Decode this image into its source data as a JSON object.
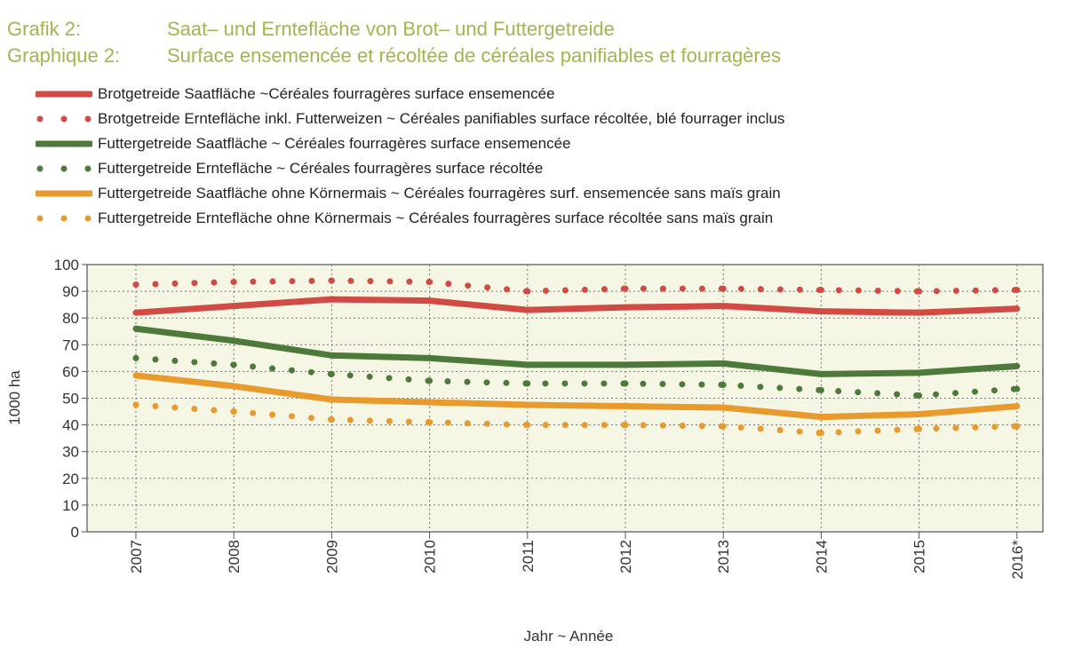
{
  "title": {
    "de_key": "Grafik 2:",
    "de_text": "Saat– und Erntefläche von Brot– und Futtergetreide",
    "fr_key": "Graphique 2:",
    "fr_text": "Surface ensemencée et récoltée de céréales panifiables et fourragères"
  },
  "colors": {
    "title": "#a2b54f",
    "red": "#d24a44",
    "green": "#4d7a3a",
    "orange": "#e99a2d",
    "plot_bg": "#f6f6e4"
  },
  "chart_data": {
    "type": "line",
    "ylabel": "1000 ha",
    "xlabel": "Jahr ~ Année",
    "ylim": [
      0,
      100
    ],
    "yticks": [
      0,
      10,
      20,
      30,
      40,
      50,
      60,
      70,
      80,
      90,
      100
    ],
    "categories": [
      "2007",
      "2008",
      "2009",
      "2010",
      "2011",
      "2012",
      "2013",
      "2014",
      "2015",
      "2016*"
    ],
    "grid": true,
    "series": [
      {
        "name": "Brotgetreide Saatfläche ~Céréales fourragères surface ensemencée",
        "style": "solid",
        "color": "#d24a44",
        "values": [
          82,
          84.5,
          87,
          86.5,
          83,
          84,
          84.5,
          82.5,
          82,
          83.5
        ]
      },
      {
        "name": "Brotgetreide Erntefläche inkl. Futterweizen ~ Céréales panifiables surface récoltée, blé fourrager inclus",
        "style": "dotted",
        "color": "#d24a44",
        "values": [
          92.5,
          93.5,
          94,
          93.5,
          90,
          91,
          91,
          90.5,
          90,
          90.5
        ]
      },
      {
        "name": "Futtergetreide Saatfläche ~ Céréales fourragères surface ensemencée",
        "style": "solid",
        "color": "#4d7a3a",
        "values": [
          76,
          71.5,
          66,
          65,
          62.5,
          62.5,
          63,
          59,
          59.5,
          62
        ]
      },
      {
        "name": "Futtergetreide Erntefläche ~ Céréales fourragères surface récoltée",
        "style": "dotted",
        "color": "#4d7a3a",
        "values": [
          65,
          62.5,
          59,
          56.5,
          55.5,
          55.5,
          55,
          53,
          51,
          53.5
        ]
      },
      {
        "name": "Futtergetreide Saatfläche ohne Körnermais ~ Céréales fourragères surf. ensemencée sans maïs grain",
        "style": "solid",
        "color": "#e99a2d",
        "values": [
          58.5,
          54.5,
          49.5,
          48.5,
          47.5,
          47,
          46.5,
          43,
          44,
          47
        ]
      },
      {
        "name": "Futtergetreide Erntefläche ohne Körnermais ~ Céréales fourragères surface récoltée sans maïs grain",
        "style": "dotted",
        "color": "#e99a2d",
        "values": [
          47.5,
          45,
          42,
          41,
          40,
          40,
          39.5,
          37,
          38.5,
          39.5
        ]
      }
    ]
  }
}
